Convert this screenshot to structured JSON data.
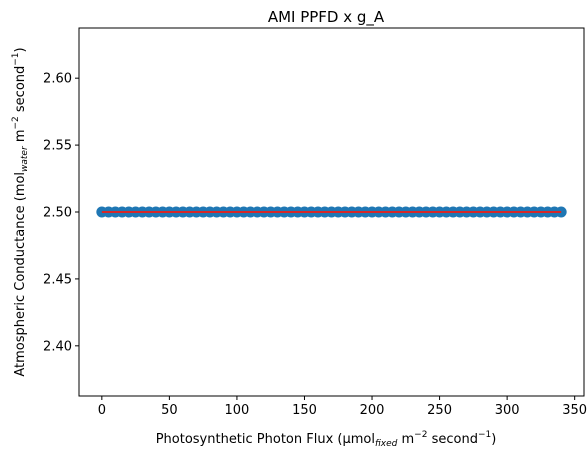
{
  "chart_data": {
    "type": "scatter",
    "title": "AMI PPFD x g_A",
    "xlabel": {
      "pre": "Photosynthetic Photon Flux (μmol",
      "sub": "fixed",
      "mid1": " m",
      "sup1": "−2",
      "mid2": " second",
      "sup2": "−1",
      "post": ")"
    },
    "ylabel": {
      "pre": "Atmospheric Conductance (mol",
      "sub": "water",
      "mid1": " m",
      "sup1": "−2",
      "mid2": " second",
      "sup2": "−1",
      "post": ")"
    },
    "xlim": [
      -16.9,
      356.9
    ],
    "ylim": [
      2.3625,
      2.6375
    ],
    "xticks": [
      0,
      50,
      100,
      150,
      200,
      250,
      300,
      350
    ],
    "yticks": [
      2.4,
      2.45,
      2.5,
      2.55,
      2.6
    ],
    "series": [
      {
        "x_start": 0,
        "x_end": 340,
        "x_step": 5,
        "y_constant": 2.5,
        "marker_color": "#1f77b4",
        "line_color": "#d62728"
      }
    ],
    "grid": false
  }
}
